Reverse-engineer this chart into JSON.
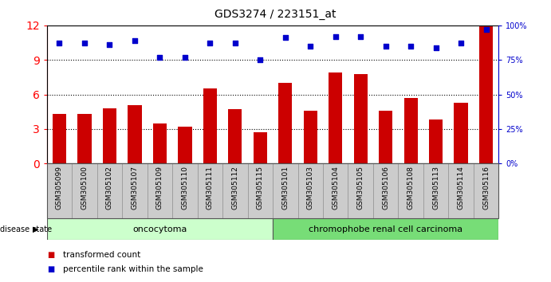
{
  "title": "GDS3274 / 223151_at",
  "samples": [
    "GSM305099",
    "GSM305100",
    "GSM305102",
    "GSM305107",
    "GSM305109",
    "GSM305110",
    "GSM305111",
    "GSM305112",
    "GSM305115",
    "GSM305101",
    "GSM305103",
    "GSM305104",
    "GSM305105",
    "GSM305106",
    "GSM305108",
    "GSM305113",
    "GSM305114",
    "GSM305116"
  ],
  "transformed_count": [
    4.3,
    4.3,
    4.8,
    5.1,
    3.5,
    3.2,
    6.5,
    4.7,
    2.7,
    7.0,
    4.6,
    7.9,
    7.8,
    4.6,
    5.7,
    3.8,
    5.3,
    12.0
  ],
  "percentile_rank_pct": [
    87,
    87,
    86,
    89,
    77,
    77,
    87,
    87,
    75,
    91,
    85,
    92,
    92,
    85,
    85,
    84,
    87,
    97
  ],
  "group1_label": "oncocytoma",
  "group1_count": 9,
  "group2_label": "chromophobe renal cell carcinoma",
  "group2_count": 9,
  "disease_state_label": "disease state",
  "legend_red": "transformed count",
  "legend_blue": "percentile rank within the sample",
  "bar_color": "#cc0000",
  "dot_color": "#0000cc",
  "group1_bg": "#ccffcc",
  "group2_bg": "#77dd77",
  "xtick_bg": "#cccccc",
  "ylim_left": [
    0,
    12
  ],
  "ylim_right": [
    0,
    100
  ],
  "yticks_left": [
    0,
    3,
    6,
    9,
    12
  ],
  "yticks_right": [
    0,
    25,
    50,
    75,
    100
  ],
  "grid_values": [
    3,
    6,
    9
  ],
  "title_fontsize": 10,
  "tick_fontsize": 7,
  "label_fontsize": 8
}
